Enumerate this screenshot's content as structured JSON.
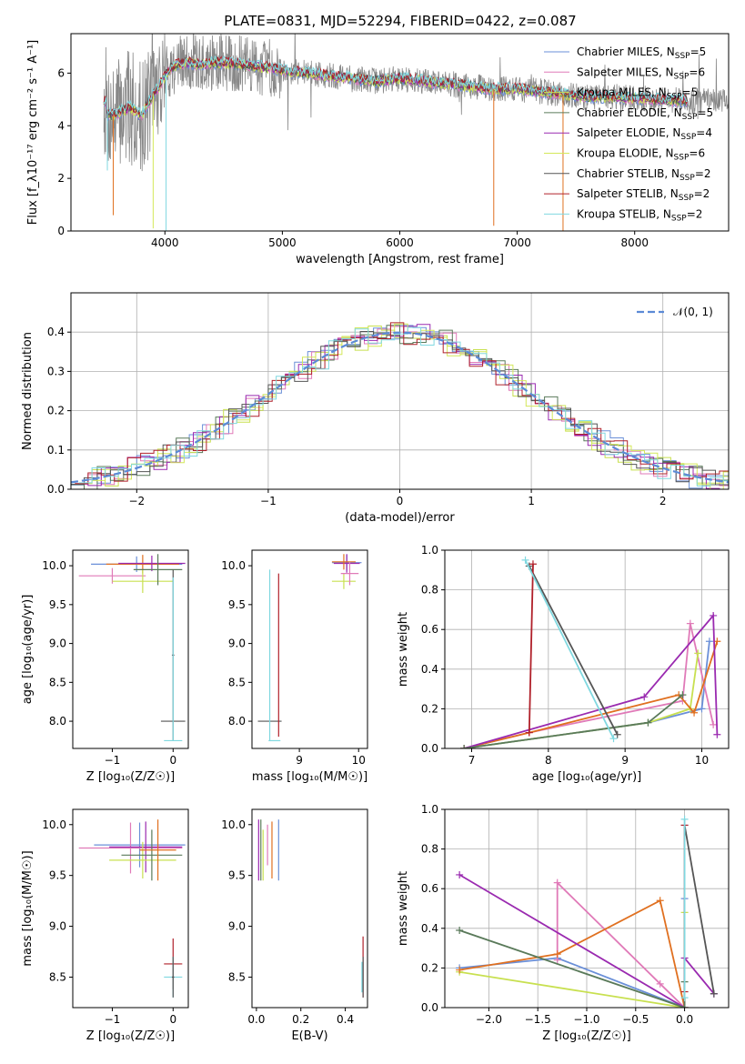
{
  "figure": {
    "title": "PLATE=0831, MJD=52294, FIBERID=0422, z=0.087"
  },
  "colors": {
    "chabrier_miles": "#6a8fd8",
    "salpeter_miles": "#e07ab8",
    "kroupa_miles": "#c8e050",
    "chabrier_elodie": "#5a7a5a",
    "salpeter_elodie": "#9a2ab0",
    "kroupa_elodie": "#d4e85a",
    "chabrier_stelib": "#555555",
    "salpeter_stelib": "#b0202a",
    "kroupa_stelib": "#80d8e0",
    "orange": "#e07020",
    "gauss": "#5b8ad6"
  },
  "chart_data": [
    {
      "id": "spectrum",
      "type": "line",
      "xlabel": "wavelength [Angstrom, rest frame]",
      "ylabel": "Flux [f_λ10⁻¹⁷ erg cm⁻² s⁻¹ A⁻¹]",
      "xlim": [
        3200,
        8800
      ],
      "ylim": [
        0,
        7.5
      ],
      "xticks": [
        "4000",
        "5000",
        "6000",
        "7000",
        "8000"
      ],
      "yticks": [
        "0",
        "2",
        "4",
        "6"
      ],
      "legend_position": "top-right",
      "legend": [
        "Chabrier MILES, N_SSP=5",
        "Salpeter MILES, N_SSP=6",
        "Kroupa MILES, N_SSP=5",
        "Chabrier ELODIE, N_SSP=5",
        "Salpeter ELODIE, N_SSP=4",
        "Kroupa ELODIE, N_SSP=6",
        "Chabrier STELIB, N_SSP=2",
        "Salpeter STELIB, N_SSP=2",
        "Kroupa STELIB, N_SSP=2"
      ],
      "model_continuum": {
        "x": [
          3500,
          3550,
          3650,
          3700,
          3800,
          3900,
          3950,
          4000,
          4050,
          4100,
          4200,
          4300,
          4400,
          4500,
          4700,
          4900,
          5000,
          5200,
          5400,
          5600,
          5800,
          6000,
          6200,
          6400,
          6600,
          6800,
          7000,
          7200,
          7400,
          7600,
          7800,
          8000,
          8200,
          8400,
          8800
        ],
        "y": [
          4.5,
          4.4,
          4.6,
          4.7,
          4.4,
          5.2,
          5.5,
          5.9,
          6.2,
          6.3,
          6.4,
          6.3,
          6.4,
          6.4,
          6.3,
          6.2,
          6.1,
          6.0,
          5.9,
          5.8,
          5.7,
          5.8,
          5.7,
          5.6,
          5.5,
          5.4,
          5.4,
          5.3,
          5.2,
          5.1,
          5.1,
          5.05,
          5.0,
          4.95,
          4.9
        ]
      }
    },
    {
      "id": "residuals",
      "type": "line",
      "xlabel": "(data-model)/error",
      "ylabel": "Normed distribution",
      "xlim": [
        -2.5,
        2.5
      ],
      "ylim": [
        0,
        0.5
      ],
      "xticks": [
        "−2",
        "−1",
        "0",
        "1",
        "2"
      ],
      "yticks": [
        "0.0",
        "0.1",
        "0.2",
        "0.3",
        "0.4"
      ],
      "legend_position": "top-right",
      "legend": [
        "𝒩(0, 1)"
      ]
    },
    {
      "id": "age_vs_Z",
      "type": "scatter",
      "xlabel": "Z [log₁₀(Z/Z☉)]",
      "ylabel": "age  [log₁₀(age/yr)]",
      "xlim": [
        -1.65,
        0.25
      ],
      "ylim": [
        7.65,
        10.2
      ],
      "xticks": [
        "−1",
        "0"
      ],
      "yticks": [
        "8.0",
        "8.5",
        "9.0",
        "9.5",
        "10.0"
      ]
    },
    {
      "id": "age_vs_mass",
      "type": "scatter",
      "xlabel": "mass [log₁₀(M/M☉)]",
      "ylabel": "",
      "xlim": [
        8.2,
        10.15
      ],
      "ylim": [
        7.65,
        10.2
      ],
      "xticks": [
        "9",
        "10"
      ],
      "yticks": [
        "8.0",
        "8.5",
        "9.0",
        "9.5",
        "10.0"
      ]
    },
    {
      "id": "weight_vs_age",
      "type": "line",
      "xlabel": "age  [log₁₀(age/yr)]",
      "ylabel": "mass weight",
      "xlim": [
        6.65,
        10.35
      ],
      "ylim": [
        0,
        1
      ],
      "xticks": [
        "7",
        "8",
        "9",
        "10"
      ],
      "yticks": [
        "0.0",
        "0.2",
        "0.4",
        "0.6",
        "0.8",
        "1.0"
      ],
      "series": [
        {
          "name": "Chabrier MILES",
          "x": [
            6.9,
            9.3,
            10.0,
            10.1
          ],
          "y": [
            0.0,
            0.13,
            0.2,
            0.54
          ]
        },
        {
          "name": "Salpeter MILES",
          "x": [
            6.9,
            7.75,
            9.75,
            9.85,
            10.15
          ],
          "y": [
            0.0,
            0.08,
            0.24,
            0.63,
            0.12
          ]
        },
        {
          "name": "Kroupa MILES",
          "x": [
            6.9,
            9.3,
            9.85,
            9.95
          ],
          "y": [
            0.0,
            0.13,
            0.2,
            0.48
          ]
        },
        {
          "name": "orange",
          "x": [
            6.9,
            7.75,
            9.7,
            9.9,
            10.2
          ],
          "y": [
            0.0,
            0.08,
            0.27,
            0.18,
            0.54
          ]
        },
        {
          "name": "Salpeter ELODIE",
          "x": [
            6.9,
            9.25,
            10.15,
            10.2
          ],
          "y": [
            0.0,
            0.26,
            0.67,
            0.07
          ]
        },
        {
          "name": "Chabrier ELODIE",
          "x": [
            6.9,
            9.3,
            9.75
          ],
          "y": [
            0.0,
            0.13,
            0.27
          ]
        },
        {
          "name": "Chabrier STELIB",
          "x": [
            7.75,
            8.9
          ],
          "y": [
            0.92,
            0.07
          ]
        },
        {
          "name": "Salpeter STELIB",
          "x": [
            7.75,
            7.8
          ],
          "y": [
            0.08,
            0.93
          ]
        },
        {
          "name": "Kroupa STELIB",
          "x": [
            7.7,
            8.85
          ],
          "y": [
            0.95,
            0.05
          ]
        }
      ]
    },
    {
      "id": "mass_vs_Z",
      "type": "scatter",
      "xlabel": "Z [log₁₀(Z/Z☉)]",
      "ylabel": "mass [log₁₀(M/M☉)]",
      "xlim": [
        -1.65,
        0.25
      ],
      "ylim": [
        8.2,
        10.15
      ],
      "xticks": [
        "−1",
        "0"
      ],
      "yticks": [
        "8.5",
        "9.0",
        "9.5",
        "10.0"
      ]
    },
    {
      "id": "mass_vs_EBV",
      "type": "scatter",
      "xlabel": "E(B-V)",
      "ylabel": "",
      "xlim": [
        -0.02,
        0.5
      ],
      "ylim": [
        8.2,
        10.15
      ],
      "xticks": [
        "0.0",
        "0.2",
        "0.4"
      ],
      "yticks": [
        "8.5",
        "9.0",
        "9.5",
        "10.0"
      ]
    },
    {
      "id": "weight_vs_Z",
      "type": "line",
      "xlabel": "Z [log₁₀(Z/Z☉)]",
      "ylabel": "mass weight",
      "xlim": [
        -2.45,
        0.45
      ],
      "ylim": [
        0,
        1
      ],
      "xticks": [
        "−2.0",
        "−1.5",
        "−1.0",
        "−0.5",
        "0.0"
      ],
      "yticks": [
        "0.0",
        "0.2",
        "0.4",
        "0.6",
        "0.8",
        "1.0"
      ],
      "series": [
        {
          "name": "Chabrier MILES",
          "x": [
            -2.3,
            -1.3,
            0.0,
            0.0
          ],
          "y": [
            0.2,
            0.25,
            0.0,
            0.55
          ]
        },
        {
          "name": "Salpeter MILES",
          "x": [
            -1.3,
            -1.3,
            -0.25,
            0.0
          ],
          "y": [
            0.24,
            0.63,
            0.12,
            0.0
          ]
        },
        {
          "name": "Kroupa MILES",
          "x": [
            -2.3,
            0.0,
            0.0
          ],
          "y": [
            0.18,
            0.0,
            0.48
          ]
        },
        {
          "name": "orange",
          "x": [
            -2.3,
            -1.3,
            -0.25,
            0.0
          ],
          "y": [
            0.19,
            0.27,
            0.54,
            0.0
          ]
        },
        {
          "name": "Salpeter ELODIE",
          "x": [
            -2.3,
            0.0,
            0.0,
            0.3
          ],
          "y": [
            0.67,
            0.0,
            0.25,
            0.07
          ]
        },
        {
          "name": "Chabrier ELODIE",
          "x": [
            -2.3,
            0.0,
            0.0
          ],
          "y": [
            0.39,
            0.0,
            0.13
          ]
        },
        {
          "name": "Chabrier STELIB",
          "x": [
            0.0,
            0.3
          ],
          "y": [
            0.92,
            0.07
          ]
        },
        {
          "name": "Salpeter STELIB",
          "x": [
            0.0,
            0.0
          ],
          "y": [
            0.08,
            0.92
          ]
        },
        {
          "name": "Kroupa STELIB",
          "x": [
            0.0,
            0.0
          ],
          "y": [
            0.95,
            0.05
          ]
        }
      ]
    }
  ]
}
